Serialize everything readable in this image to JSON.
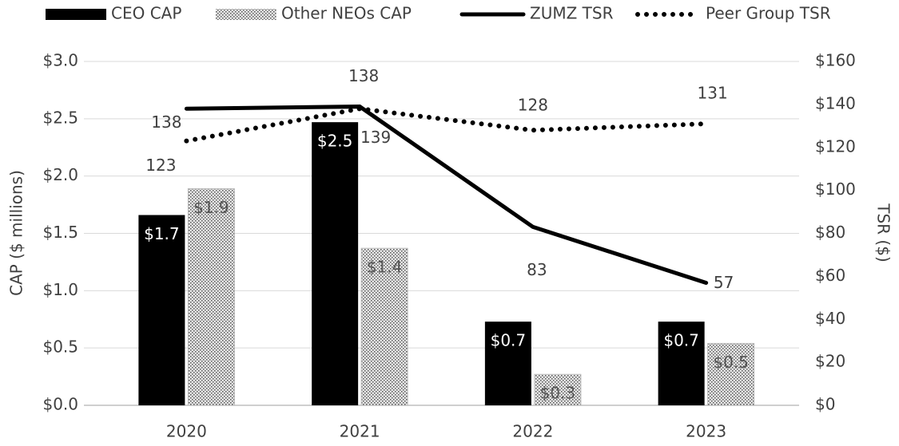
{
  "chart_data": {
    "type": "bar_line",
    "categories": [
      "2020",
      "2021",
      "2022",
      "2023"
    ],
    "series": [
      {
        "name": "CEO CAP",
        "type": "bar",
        "color": "#000000",
        "values": [
          1.66,
          2.47,
          0.73,
          0.73
        ],
        "value_labels": [
          "$1.7",
          "$2.5",
          "$0.7",
          "$0.7"
        ]
      },
      {
        "name": "Other NEOs CAP",
        "type": "bar",
        "color": "#c8c8c8",
        "values": [
          1.89,
          1.37,
          0.27,
          0.54
        ],
        "value_labels": [
          "$1.9",
          "$1.4",
          "$0.3",
          "$0.5"
        ]
      },
      {
        "name": "ZUMZ TSR",
        "type": "line",
        "axis": "y2",
        "color": "#000000",
        "values": [
          138,
          139,
          83,
          57
        ]
      },
      {
        "name": "Peer Group TSR",
        "type": "line",
        "axis": "y2",
        "dashed": true,
        "color": "#000000",
        "values": [
          123,
          138,
          128,
          131
        ]
      }
    ],
    "ylabel": "CAP ($ millions)",
    "y2label": "TSR ($)",
    "ylim": [
      0,
      3
    ],
    "yticks": [
      {
        "value": 0,
        "label": "$0.0"
      },
      {
        "value": 0.5,
        "label": "$0.5"
      },
      {
        "value": 1,
        "label": "$1.0"
      },
      {
        "value": 1.5,
        "label": "$1.5"
      },
      {
        "value": 2,
        "label": "$2.0"
      },
      {
        "value": 2.5,
        "label": "$2.5"
      },
      {
        "value": 3,
        "label": "$3.0"
      }
    ],
    "y2lim": [
      0,
      160
    ],
    "y2ticks": [
      {
        "value": 0,
        "label": "$0"
      },
      {
        "value": 20,
        "label": "$20"
      },
      {
        "value": 40,
        "label": "$40"
      },
      {
        "value": 60,
        "label": "$60"
      },
      {
        "value": 80,
        "label": "$80"
      },
      {
        "value": 100,
        "label": "$100"
      },
      {
        "value": 120,
        "label": "$120"
      },
      {
        "value": 140,
        "label": "$140"
      },
      {
        "value": 160,
        "label": "$160"
      }
    ],
    "grid": true,
    "legend": "top"
  }
}
